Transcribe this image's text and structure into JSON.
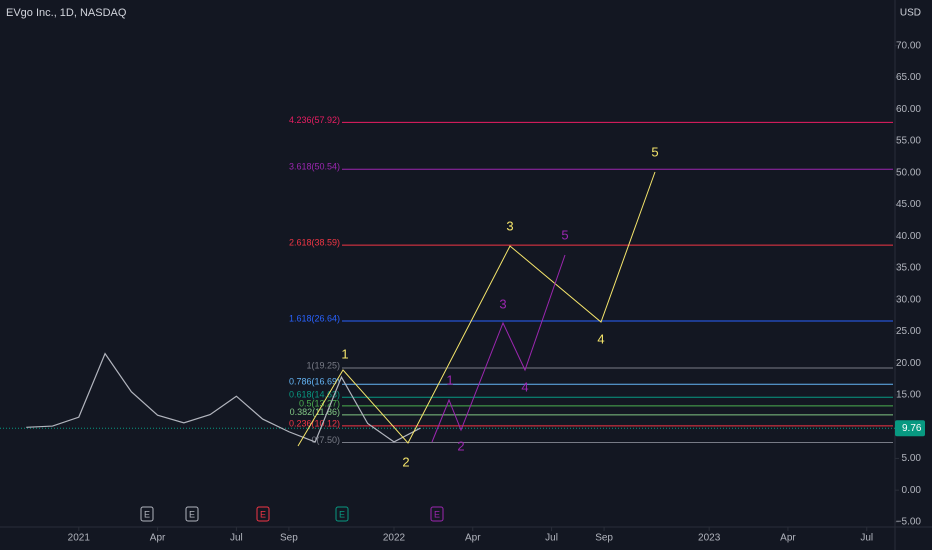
{
  "header": {
    "symbol": "EVgo Inc., 1D, NASDAQ",
    "currency": "USD"
  },
  "chart_data": {
    "type": "line",
    "color": "#b2b5be",
    "x": [
      "2020-11",
      "2020-12",
      "2021-01",
      "2021-02",
      "2021-03",
      "2021-04",
      "2021-05",
      "2021-06",
      "2021-07",
      "2021-08",
      "2021-09",
      "2021-10",
      "2021-11",
      "2021-12",
      "2022-01",
      "2022-02"
    ],
    "values": [
      9.9,
      10.1,
      11.5,
      21.5,
      15.5,
      11.8,
      10.6,
      11.9,
      14.8,
      11.2,
      9.2,
      7.6,
      17.8,
      10.5,
      7.6,
      9.76
    ],
    "xlim": [
      "2020-10",
      "2023-08"
    ],
    "xticks": [
      {
        "value": "2021-01",
        "label": "2021"
      },
      {
        "value": "2021-04",
        "label": "Apr"
      },
      {
        "value": "2021-07",
        "label": "Jul"
      },
      {
        "value": "2021-09",
        "label": "Sep"
      },
      {
        "value": "2022-01",
        "label": "2022"
      },
      {
        "value": "2022-04",
        "label": "Apr"
      },
      {
        "value": "2022-07",
        "label": "Jul"
      },
      {
        "value": "2022-09",
        "label": "Sep"
      },
      {
        "value": "2023-01",
        "label": "2023"
      },
      {
        "value": "2023-04",
        "label": "Apr"
      },
      {
        "value": "2023-07",
        "label": "Jul"
      }
    ],
    "ylim": [
      -5.8,
      77.2
    ],
    "yticks": [
      {
        "value": -5,
        "label": "−5.00"
      },
      {
        "value": 0,
        "label": "0.00"
      },
      {
        "value": 5,
        "label": "5.00"
      },
      {
        "value": 10,
        "label": "10.00"
      },
      {
        "value": 15,
        "label": "15.00"
      },
      {
        "value": 20,
        "label": "20.00"
      },
      {
        "value": 25,
        "label": "25.00"
      },
      {
        "value": 30,
        "label": "30.00"
      },
      {
        "value": 35,
        "label": "35.00"
      },
      {
        "value": 40,
        "label": "40.00"
      },
      {
        "value": 45,
        "label": "45.00"
      },
      {
        "value": 50,
        "label": "50.00"
      },
      {
        "value": 55,
        "label": "55.00"
      },
      {
        "value": 60,
        "label": "60.00"
      },
      {
        "value": 65,
        "label": "65.00"
      },
      {
        "value": 70,
        "label": "70.00"
      }
    ],
    "last_price": {
      "value": 9.76,
      "label": "9.76",
      "color": "#089981"
    },
    "fib_levels": [
      {
        "price": 57.92,
        "label": "4.236(57.92)",
        "color": "#e91e63"
      },
      {
        "price": 50.54,
        "label": "3.618(50.54)",
        "color": "#9c27b0"
      },
      {
        "price": 38.59,
        "label": "2.618(38.59)",
        "color": "#f23645"
      },
      {
        "price": 26.64,
        "label": "1.618(26.64)",
        "color": "#2962ff"
      },
      {
        "price": 19.25,
        "label": "1(19.25)",
        "color": "#787b86"
      },
      {
        "price": 16.69,
        "label": "0.786(16.69)",
        "color": "#64b5f6"
      },
      {
        "price": 14.63,
        "label": "0.618(14.63)",
        "color": "#089981"
      },
      {
        "price": 13.27,
        "label": "0.5(13.27)",
        "color": "#4caf50"
      },
      {
        "price": 11.86,
        "label": "0.382(11.86)",
        "color": "#81c784"
      },
      {
        "price": 10.12,
        "label": "0.236(10.12)",
        "color": "#f23645"
      },
      {
        "price": 7.5,
        "label": "0(7.50)",
        "color": "#787b86"
      }
    ],
    "waves": [
      {
        "color": "#f5e56b",
        "labels": [
          "1",
          "2",
          "3",
          "4",
          "5"
        ]
      },
      {
        "color": "#9c27b0",
        "labels": [
          "1",
          "2",
          "3",
          "4",
          "5"
        ]
      }
    ],
    "events": [
      {
        "label": "E",
        "color": "#b2b5be"
      },
      {
        "label": "E",
        "color": "#b2b5be"
      },
      {
        "label": "E",
        "color": "#f23645"
      },
      {
        "label": "E",
        "color": "#089981"
      },
      {
        "label": "E",
        "color": "#9c27b0"
      }
    ]
  }
}
